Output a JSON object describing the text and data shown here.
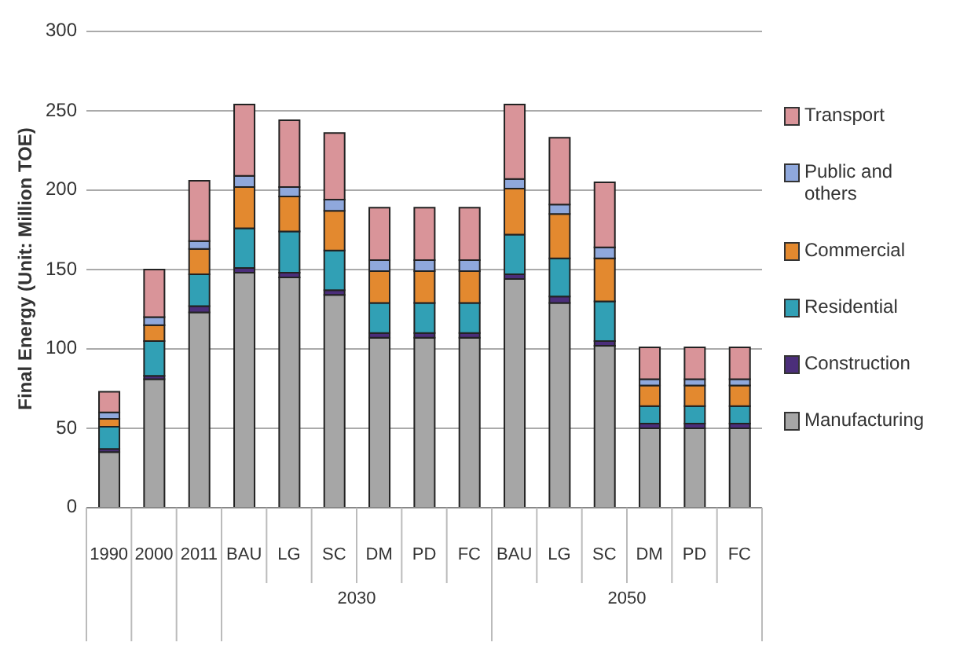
{
  "chart_data": {
    "type": "bar",
    "stacked": true,
    "ylabel": "Final Energy (Unit: Million TOE)",
    "categories": [
      "1990",
      "2000",
      "2011",
      "BAU",
      "LG",
      "SC",
      "DM",
      "PD",
      "FC",
      "BAU",
      "LG",
      "SC",
      "DM",
      "PD",
      "FC"
    ],
    "annotations": [
      "2030",
      "2050"
    ],
    "series": [
      {
        "name": "Manufacturing",
        "color": "#a6a6a6",
        "values": [
          35,
          81,
          123,
          148,
          145,
          134,
          107,
          107,
          107,
          144,
          129,
          102,
          50,
          50,
          50
        ]
      },
      {
        "name": "Construction",
        "color": "#4b2e7a",
        "values": [
          2,
          2,
          4,
          3,
          3,
          3,
          3,
          3,
          3,
          3,
          4,
          3,
          3,
          3,
          3
        ]
      },
      {
        "name": "Residential",
        "color": "#31a0b5",
        "values": [
          14,
          22,
          20,
          25,
          26,
          25,
          19,
          19,
          19,
          25,
          24,
          25,
          11,
          11,
          11
        ]
      },
      {
        "name": "Commercial",
        "color": "#e3892f",
        "values": [
          5,
          10,
          16,
          26,
          22,
          25,
          20,
          20,
          20,
          29,
          28,
          27,
          13,
          13,
          13
        ]
      },
      {
        "name": "Public and others",
        "color": "#8fa8dc",
        "values": [
          4,
          5,
          5,
          7,
          6,
          7,
          7,
          7,
          7,
          6,
          6,
          7,
          4,
          4,
          4
        ]
      },
      {
        "name": "Transport",
        "color": "#d99499",
        "values": [
          13,
          30,
          38,
          45,
          42,
          42,
          33,
          33,
          33,
          47,
          42,
          41,
          20,
          20,
          20
        ]
      }
    ],
    "ylim": [
      0,
      300
    ],
    "yticks": [
      0,
      50,
      100,
      150,
      200,
      250,
      300
    ],
    "grid": "y",
    "legend": "right"
  }
}
